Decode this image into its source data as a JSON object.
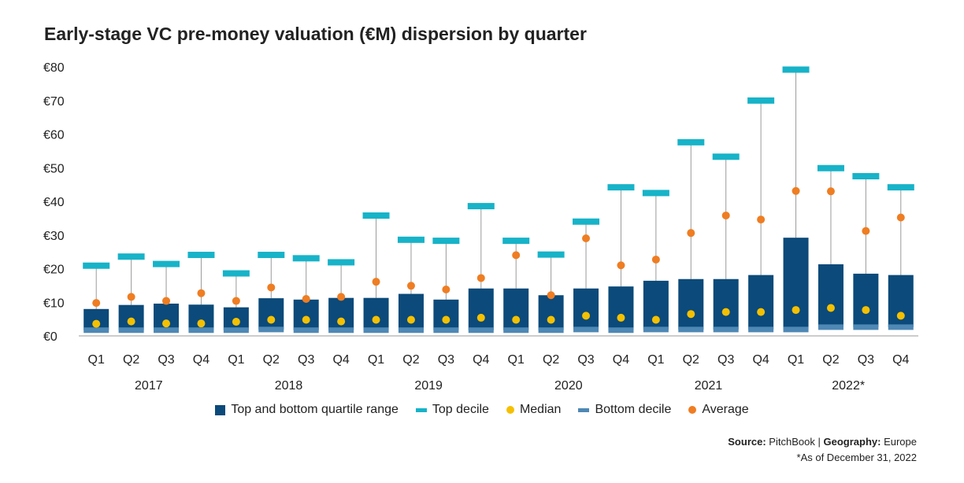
{
  "title": "Early-stage VC pre-money valuation (€M) dispersion by quarter",
  "colors": {
    "quartile": "#0b4a7a",
    "top_decile": "#17b3c8",
    "bottom_decile": "#4e88b5",
    "median": "#f5c000",
    "average": "#ef7d22",
    "whisker": "#9a9a9a",
    "axis": "#9a9a9a"
  },
  "legend": {
    "quartile": "Top and bottom quartile range",
    "top_decile": "Top decile",
    "median": "Median",
    "bottom_decile": "Bottom decile",
    "average": "Average"
  },
  "source": {
    "source_label": "Source:",
    "source_value": "PitchBook",
    "separator": "|",
    "geo_label": "Geography:",
    "geo_value": "Europe",
    "note": "*As of December 31, 2022"
  },
  "chart_data": {
    "type": "box",
    "ylim": [
      0,
      80
    ],
    "yticks": [
      0,
      10,
      20,
      30,
      40,
      50,
      60,
      70,
      80
    ],
    "ytick_labels": [
      "€0",
      "€10",
      "€20",
      "€30",
      "€40",
      "€50",
      "€60",
      "€70",
      "€80"
    ],
    "x_quarters": [
      "Q1",
      "Q2",
      "Q3",
      "Q4",
      "Q1",
      "Q2",
      "Q3",
      "Q4",
      "Q1",
      "Q2",
      "Q3",
      "Q4",
      "Q1",
      "Q2",
      "Q3",
      "Q4",
      "Q1",
      "Q2",
      "Q3",
      "Q4",
      "Q1",
      "Q2",
      "Q3",
      "Q4"
    ],
    "x_years": [
      "2017",
      "2018",
      "2019",
      "2020",
      "2021",
      "2022*"
    ],
    "quarters_per_year": 4,
    "series": [
      {
        "name": "Top decile",
        "values": [
          21.0,
          23.7,
          21.5,
          24.2,
          18.7,
          24.2,
          23.2,
          22.0,
          35.9,
          28.7,
          28.4,
          38.7,
          28.4,
          24.3,
          34.1,
          44.3,
          42.6,
          57.7,
          53.4,
          70.1,
          79.3,
          50.0,
          47.6,
          44.3
        ]
      },
      {
        "name": "Top quartile",
        "values": [
          8.0,
          9.2,
          9.6,
          9.3,
          8.5,
          11.2,
          10.8,
          11.3,
          11.3,
          12.5,
          10.8,
          14.1,
          14.1,
          12.1,
          14.1,
          14.7,
          16.4,
          16.9,
          16.9,
          18.1,
          29.2,
          21.3,
          18.5,
          18.1
        ]
      },
      {
        "name": "Bottom decile",
        "values": [
          1.7,
          1.7,
          1.7,
          1.7,
          1.7,
          1.9,
          1.7,
          1.7,
          1.7,
          1.7,
          1.7,
          1.7,
          1.7,
          1.7,
          1.9,
          1.7,
          1.9,
          1.9,
          1.9,
          1.9,
          1.9,
          2.6,
          2.6,
          2.6
        ]
      },
      {
        "name": "Median",
        "values": [
          3.6,
          4.3,
          3.7,
          3.7,
          4.2,
          4.8,
          4.8,
          4.3,
          4.8,
          4.8,
          4.8,
          5.4,
          4.8,
          4.8,
          6.0,
          5.4,
          4.8,
          6.5,
          7.1,
          7.1,
          7.7,
          8.3,
          7.7,
          6.0
        ]
      },
      {
        "name": "Average",
        "values": [
          9.8,
          11.6,
          10.4,
          12.7,
          10.4,
          14.4,
          11.0,
          11.6,
          16.1,
          14.9,
          13.8,
          17.2,
          24.0,
          12.1,
          29.0,
          21.0,
          22.7,
          30.6,
          35.8,
          34.6,
          43.1,
          43.0,
          31.2,
          35.2
        ]
      }
    ]
  }
}
